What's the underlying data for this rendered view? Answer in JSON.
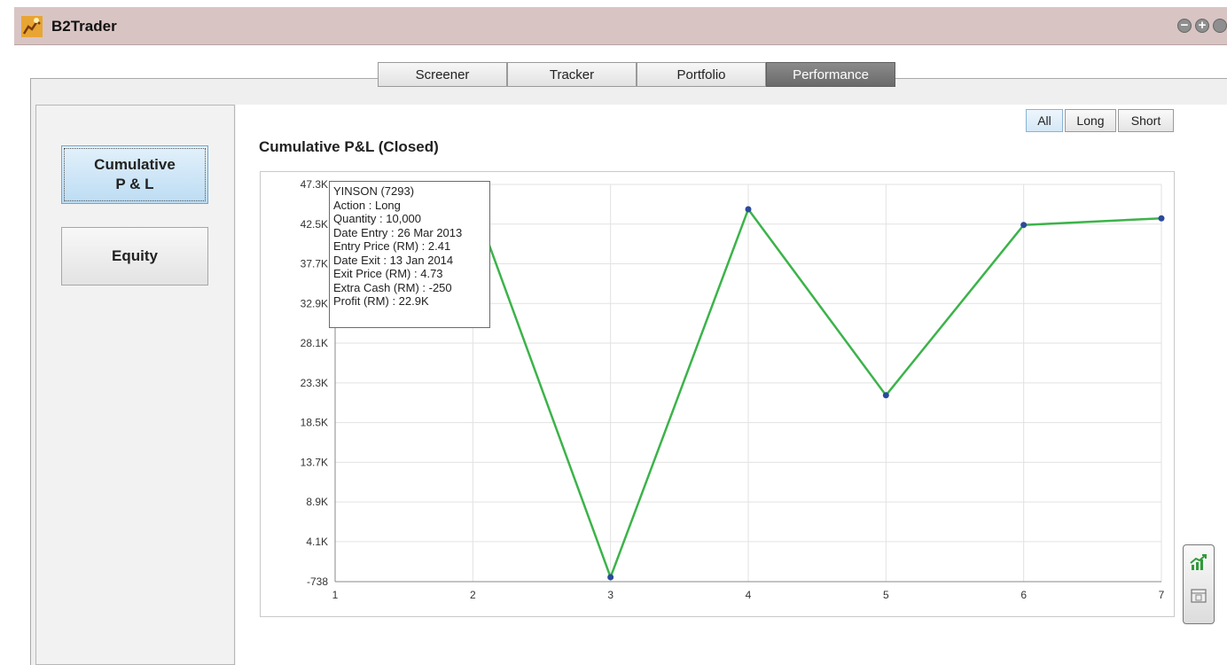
{
  "window": {
    "title": "B2Trader"
  },
  "tabs": [
    {
      "label": "Screener",
      "active": false
    },
    {
      "label": "Tracker",
      "active": false
    },
    {
      "label": "Portfolio",
      "active": false
    },
    {
      "label": "Performance",
      "active": true
    }
  ],
  "sidebar": {
    "items": [
      {
        "label": "Cumulative\nP & L",
        "active": true
      },
      {
        "label": "Equity",
        "active": false
      }
    ]
  },
  "filters": [
    {
      "label": "All",
      "active": true
    },
    {
      "label": "Long",
      "active": false
    },
    {
      "label": "Short",
      "active": false
    }
  ],
  "chart_title": "Cumulative P&L (Closed)",
  "tooltip": {
    "lines": [
      "YINSON (7293)",
      "Action : Long",
      "Quantity : 10,000",
      "Date Entry : 26 Mar 2013",
      "Entry Price (RM) : 2.41",
      "Date Exit : 13 Jan 2014",
      "Exit Price (RM) : 4.73",
      "Extra Cash (RM) : -250",
      "Profit (RM) : 22.9K"
    ]
  },
  "chart_data": {
    "type": "line",
    "title": "Cumulative P&L (Closed)",
    "x": [
      1,
      2,
      3,
      4,
      5,
      6,
      7
    ],
    "series": [
      {
        "values": [
          44900,
          45400,
          -200,
          44300,
          21800,
          42400,
          43200
        ]
      }
    ],
    "y_ticks": [
      "47.3K",
      "42.5K",
      "37.7K",
      "32.9K",
      "28.1K",
      "23.3K",
      "18.5K",
      "13.7K",
      "8.9K",
      "4.1K",
      "-738"
    ],
    "y_tick_values": [
      47300,
      42500,
      37700,
      32900,
      28100,
      23300,
      18500,
      13700,
      8900,
      4100,
      -738
    ],
    "x_ticks": [
      "1",
      "2",
      "3",
      "4",
      "5",
      "6",
      "7"
    ],
    "ylim": [
      -738,
      47300
    ],
    "xlim": [
      1,
      7
    ],
    "grid": true,
    "colors": {
      "line": "#3cb34a",
      "point": "#2b4a9c",
      "grid": "#e2e2e2"
    }
  }
}
